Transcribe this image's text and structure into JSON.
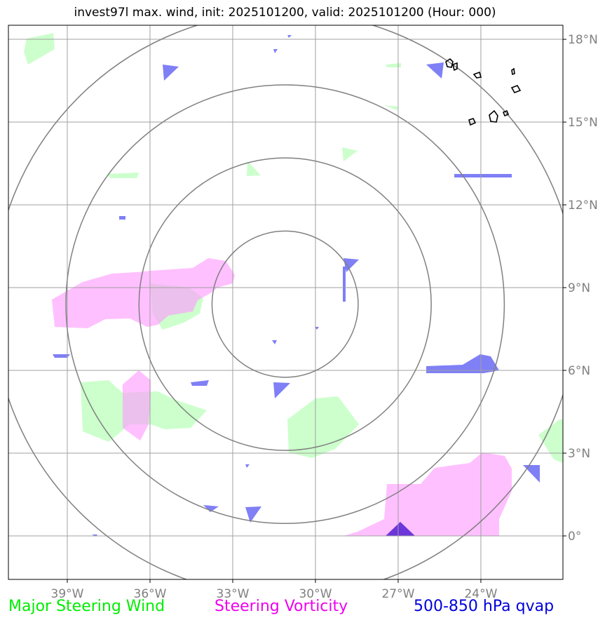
{
  "title": "invest97l max. wind, init: 2025101200, valid: 2025101200 (Hour: 000)",
  "map": {
    "lon_range": [
      -41,
      -21
    ],
    "lat_range": [
      -1.5,
      18.3
    ],
    "storm_center": {
      "lon": -31.1,
      "lat": 8.4
    },
    "range_rings_deg": [
      2.65,
      5.3,
      7.95,
      10.6
    ],
    "lon_ticks": [
      {
        "value": -39,
        "label": "39°W"
      },
      {
        "value": -36,
        "label": "36°W"
      },
      {
        "value": -33,
        "label": "33°W"
      },
      {
        "value": -30,
        "label": "30°W"
      },
      {
        "value": -27,
        "label": "27°W"
      },
      {
        "value": -24,
        "label": "24°W"
      }
    ],
    "lat_ticks": [
      {
        "value": 0,
        "label": "0°"
      },
      {
        "value": 3,
        "label": "3°N"
      },
      {
        "value": 6,
        "label": "6°N"
      },
      {
        "value": 9,
        "label": "9°N"
      },
      {
        "value": 12,
        "label": "12°N"
      },
      {
        "value": 15,
        "label": "15°N"
      },
      {
        "value": 18,
        "label": "18°N"
      }
    ],
    "colors": {
      "wind": "#ccffcc",
      "vorticity": "#ff99ff",
      "qvap": "#0000ee",
      "qvap_strong": "#3300cc",
      "grid": "#a0a0a0",
      "rings": "#808080"
    }
  },
  "legend": {
    "wind": {
      "label": "Major Steering Wind",
      "color": "#00ee00"
    },
    "vorticity": {
      "label": "Steering Vorticity",
      "color": "#ee00ee"
    },
    "qvap": {
      "label": "500-850 hPa qvap",
      "color": "#0000dd"
    }
  }
}
